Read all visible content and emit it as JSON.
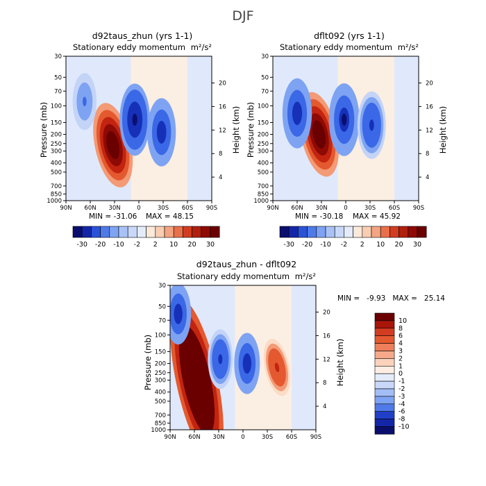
{
  "figure": {
    "super_title": "DJF",
    "unit_label": "m²/s²"
  },
  "panels": {
    "left": {
      "title": "d92taus_zhun (yrs 1-1)",
      "subtitle": "Stationary eddy momentum",
      "ylabel_left": "Pressure (mb)",
      "ylabel_right": "Height (km)",
      "min_label": "MIN = -31.06",
      "max_label": "MAX = 48.15"
    },
    "right": {
      "title": "dflt092 (yrs 1-1)",
      "subtitle": "Stationary eddy momentum",
      "ylabel_left": "Pressure (mb)",
      "ylabel_right": "Height (km)",
      "min_label": "MIN = -30.18",
      "max_label": "MAX = 45.92"
    },
    "diff": {
      "title": "d92taus_zhun - dflt092",
      "subtitle": "Stationary eddy momentum",
      "ylabel_left": "Pressure (mb)",
      "ylabel_right": "Height (km)",
      "minmax_label": "MIN =   -9.93   MAX =   25.14"
    }
  },
  "chart_data": [
    {
      "type": "heatmap",
      "name": "d92taus_zhun (yrs 1-1)",
      "x_ticks": [
        "90N",
        "60N",
        "30N",
        "0",
        "30S",
        "60S",
        "90S"
      ],
      "x_range": [
        90,
        -90
      ],
      "y_ticks_pressure": [
        30,
        50,
        70,
        100,
        150,
        200,
        250,
        300,
        400,
        500,
        700,
        850,
        1000
      ],
      "y_ticks_height_km": [
        4,
        8,
        12,
        16,
        20
      ],
      "y_range_mb": [
        1000,
        30
      ],
      "levels": [
        -30,
        -20,
        -10,
        -2,
        2,
        10,
        20,
        30
      ],
      "colorbar_labels": [
        "-30",
        "-20",
        "-10",
        "-2",
        "2",
        "10",
        "20",
        "30"
      ],
      "min": -31.06,
      "max": 48.15,
      "features": [
        {
          "kind": "positive",
          "lat": 32,
          "p": 260,
          "value": 48
        },
        {
          "kind": "negative",
          "lat": 5,
          "p": 140,
          "value": -31
        },
        {
          "kind": "negative",
          "lat": -28,
          "p": 190,
          "value": -26
        },
        {
          "kind": "negative",
          "lat": 67,
          "p": 90,
          "value": -12
        }
      ]
    },
    {
      "type": "heatmap",
      "name": "dflt092 (yrs 1-1)",
      "x_ticks": [
        "90N",
        "60N",
        "30N",
        "0",
        "30S",
        "60S",
        "90S"
      ],
      "x_range": [
        90,
        -90
      ],
      "y_ticks_pressure": [
        30,
        50,
        70,
        100,
        150,
        200,
        250,
        300,
        400,
        500,
        700,
        850,
        1000
      ],
      "y_ticks_height_km": [
        4,
        8,
        12,
        16,
        20
      ],
      "y_range_mb": [
        1000,
        30
      ],
      "levels": [
        -30,
        -20,
        -10,
        -2,
        2,
        10,
        20,
        30
      ],
      "colorbar_labels": [
        "-30",
        "-20",
        "-10",
        "-2",
        "2",
        "10",
        "20",
        "30"
      ],
      "min": -30.18,
      "max": 45.92,
      "features": [
        {
          "kind": "positive",
          "lat": 33,
          "p": 200,
          "value": 46
        },
        {
          "kind": "negative",
          "lat": 60,
          "p": 120,
          "value": -27
        },
        {
          "kind": "negative",
          "lat": 2,
          "p": 140,
          "value": -30
        },
        {
          "kind": "negative",
          "lat": -32,
          "p": 160,
          "value": -24
        }
      ]
    },
    {
      "type": "heatmap",
      "name": "d92taus_zhun - dflt092",
      "x_ticks": [
        "90N",
        "60N",
        "30N",
        "0",
        "30S",
        "60S",
        "90S"
      ],
      "x_range": [
        90,
        -90
      ],
      "y_ticks_pressure": [
        30,
        50,
        70,
        100,
        150,
        200,
        250,
        300,
        400,
        500,
        700,
        850,
        1000
      ],
      "y_ticks_height_km": [
        4,
        8,
        12,
        16,
        20
      ],
      "y_range_mb": [
        1000,
        30
      ],
      "levels": [
        -10,
        -8,
        -6,
        -4,
        -3,
        -2,
        -1,
        0,
        1,
        2,
        3,
        4,
        6,
        8,
        10
      ],
      "colorbar_labels": [
        "10",
        "8",
        "6",
        "4",
        "3",
        "2",
        "1",
        "0",
        "-1",
        "-2",
        "-3",
        "-4",
        "-6",
        "-8",
        "-10"
      ],
      "min": -9.93,
      "max": 25.14,
      "features": [
        {
          "kind": "positive",
          "lat": 57,
          "p": 300,
          "value": 25
        },
        {
          "kind": "negative",
          "lat": 80,
          "p": 60,
          "value": -9
        },
        {
          "kind": "negative",
          "lat": 28,
          "p": 180,
          "value": -8
        },
        {
          "kind": "negative",
          "lat": -5,
          "p": 200,
          "value": -9
        },
        {
          "kind": "positive",
          "lat": -42,
          "p": 220,
          "value": 7
        }
      ]
    }
  ]
}
